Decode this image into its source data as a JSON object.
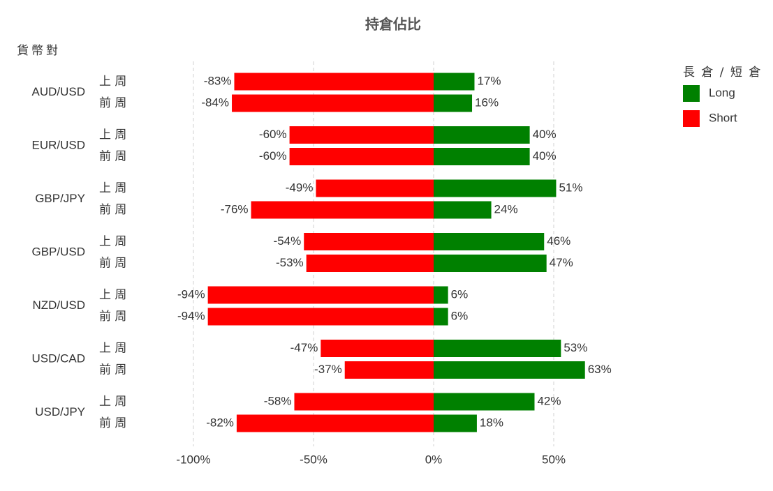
{
  "chart_data": {
    "type": "diverging-bar",
    "title": "持倉佔比",
    "y_axis_label": "貨幣對",
    "legend_title": "長 倉 / 短 倉",
    "categories": [
      "AUD/USD",
      "EUR/USD",
      "GBP/JPY",
      "GBP/USD",
      "NZD/USD",
      "USD/CAD",
      "USD/JPY"
    ],
    "periods": [
      "上 周",
      "前 周"
    ],
    "series": [
      {
        "name": "Long",
        "color": "#008000",
        "values": [
          [
            17,
            16
          ],
          [
            40,
            40
          ],
          [
            51,
            24
          ],
          [
            46,
            47
          ],
          [
            6,
            6
          ],
          [
            53,
            63
          ],
          [
            42,
            18
          ]
        ],
        "value_labels": [
          [
            "17%",
            "16%"
          ],
          [
            "40%",
            "40%"
          ],
          [
            "51%",
            "24%"
          ],
          [
            "46%",
            "47%"
          ],
          [
            "6%",
            "6%"
          ],
          [
            "53%",
            "63%"
          ],
          [
            "42%",
            "18%"
          ]
        ]
      },
      {
        "name": "Short",
        "color": "#ff0000",
        "values": [
          [
            -83,
            -84
          ],
          [
            -60,
            -60
          ],
          [
            -49,
            -76
          ],
          [
            -54,
            -53
          ],
          [
            -94,
            -94
          ],
          [
            -47,
            -37
          ],
          [
            -58,
            -82
          ]
        ],
        "value_labels": [
          [
            "-83%",
            "-84%"
          ],
          [
            "-60%",
            "-60%"
          ],
          [
            "-49%",
            "-76%"
          ],
          [
            "-54%",
            "-53%"
          ],
          [
            "-94%",
            "-94%"
          ],
          [
            "-47%",
            "-37%"
          ],
          [
            "-58%",
            "-82%"
          ]
        ]
      }
    ],
    "xlim": [
      -100,
      75
    ],
    "xticks": [
      {
        "value": -100,
        "label": "-100%"
      },
      {
        "value": -50,
        "label": "-50%"
      },
      {
        "value": 0,
        "label": "0%"
      },
      {
        "value": 50,
        "label": "50%"
      }
    ],
    "grid": true,
    "legend_position": "top-right"
  }
}
